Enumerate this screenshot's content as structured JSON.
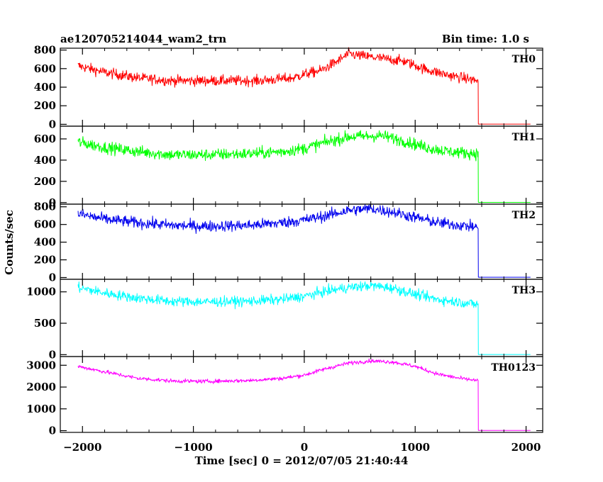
{
  "header": {
    "title": "ae120705214044_wam2_trn",
    "bin_time": "Bin time: 1.0 s"
  },
  "chart_data": {
    "type": "line",
    "xlabel": "Time [sec] 0 = 2012/07/05 21:40:44",
    "ylabel": "Counts/sec",
    "xlim": [
      -2200,
      2150
    ],
    "x_ticks": [
      -2000,
      -1000,
      0,
      1000,
      2000
    ],
    "x_tick_labels": [
      "−2000",
      "−1000",
      "0",
      "1000",
      "2000"
    ],
    "x_range_data": [
      -2040,
      2040
    ],
    "drop_time": 1570,
    "panels": [
      {
        "name": "TH0",
        "color": "#ff0000",
        "ylim": [
          -20,
          820
        ],
        "y_ticks": [
          0,
          200,
          400,
          600,
          800
        ],
        "noise": 28,
        "post_drop_value": 2,
        "profile": [
          [
            -2040,
            630
          ],
          [
            -1800,
            560
          ],
          [
            -1500,
            500
          ],
          [
            -1200,
            470
          ],
          [
            -800,
            470
          ],
          [
            -400,
            470
          ],
          [
            -100,
            500
          ],
          [
            0,
            540
          ],
          [
            150,
            580
          ],
          [
            300,
            680
          ],
          [
            400,
            760
          ],
          [
            500,
            740
          ],
          [
            700,
            710
          ],
          [
            900,
            680
          ],
          [
            1100,
            590
          ],
          [
            1300,
            530
          ],
          [
            1560,
            470
          ]
        ]
      },
      {
        "name": "TH1",
        "color": "#00ff00",
        "ylim": [
          -15,
          720
        ],
        "y_ticks": [
          0,
          200,
          400,
          600
        ],
        "noise": 28,
        "post_drop_value": 2,
        "profile": [
          [
            -2040,
            570
          ],
          [
            -1800,
            520
          ],
          [
            -1500,
            480
          ],
          [
            -1200,
            450
          ],
          [
            -900,
            450
          ],
          [
            -500,
            460
          ],
          [
            -200,
            480
          ],
          [
            0,
            510
          ],
          [
            200,
            570
          ],
          [
            400,
            620
          ],
          [
            700,
            630
          ],
          [
            900,
            580
          ],
          [
            1100,
            520
          ],
          [
            1300,
            480
          ],
          [
            1560,
            460
          ]
        ]
      },
      {
        "name": "TH2",
        "color": "#0000ee",
        "ylim": [
          -20,
          830
        ],
        "y_ticks": [
          0,
          200,
          400,
          600,
          800
        ],
        "noise": 32,
        "post_drop_value": 3,
        "profile": [
          [
            -2040,
            720
          ],
          [
            -1800,
            660
          ],
          [
            -1500,
            620
          ],
          [
            -1200,
            590
          ],
          [
            -900,
            580
          ],
          [
            -500,
            590
          ],
          [
            -200,
            620
          ],
          [
            0,
            650
          ],
          [
            200,
            700
          ],
          [
            400,
            760
          ],
          [
            600,
            780
          ],
          [
            800,
            740
          ],
          [
            1000,
            680
          ],
          [
            1200,
            620
          ],
          [
            1560,
            570
          ]
        ]
      },
      {
        "name": "TH3",
        "color": "#00ffff",
        "ylim": [
          -30,
          1200
        ],
        "y_ticks": [
          0,
          500,
          1000
        ],
        "noise": 40,
        "post_drop_value": 3,
        "profile": [
          [
            -2040,
            1070
          ],
          [
            -1800,
            980
          ],
          [
            -1500,
            900
          ],
          [
            -1200,
            850
          ],
          [
            -900,
            840
          ],
          [
            -500,
            850
          ],
          [
            -200,
            880
          ],
          [
            0,
            930
          ],
          [
            200,
            1010
          ],
          [
            400,
            1070
          ],
          [
            600,
            1100
          ],
          [
            800,
            1060
          ],
          [
            1000,
            960
          ],
          [
            1200,
            880
          ],
          [
            1560,
            800
          ]
        ]
      },
      {
        "name": "TH0123",
        "color": "#ff00ff",
        "ylim": [
          -80,
          3400
        ],
        "y_ticks": [
          0,
          1000,
          2000,
          3000
        ],
        "noise": 45,
        "post_drop_value": 10,
        "profile": [
          [
            -2040,
            2950
          ],
          [
            -1800,
            2700
          ],
          [
            -1500,
            2400
          ],
          [
            -1200,
            2280
          ],
          [
            -900,
            2260
          ],
          [
            -500,
            2300
          ],
          [
            -200,
            2400
          ],
          [
            0,
            2550
          ],
          [
            200,
            2850
          ],
          [
            400,
            3100
          ],
          [
            600,
            3200
          ],
          [
            800,
            3150
          ],
          [
            1000,
            2950
          ],
          [
            1200,
            2600
          ],
          [
            1400,
            2400
          ],
          [
            1560,
            2300
          ]
        ]
      }
    ]
  }
}
